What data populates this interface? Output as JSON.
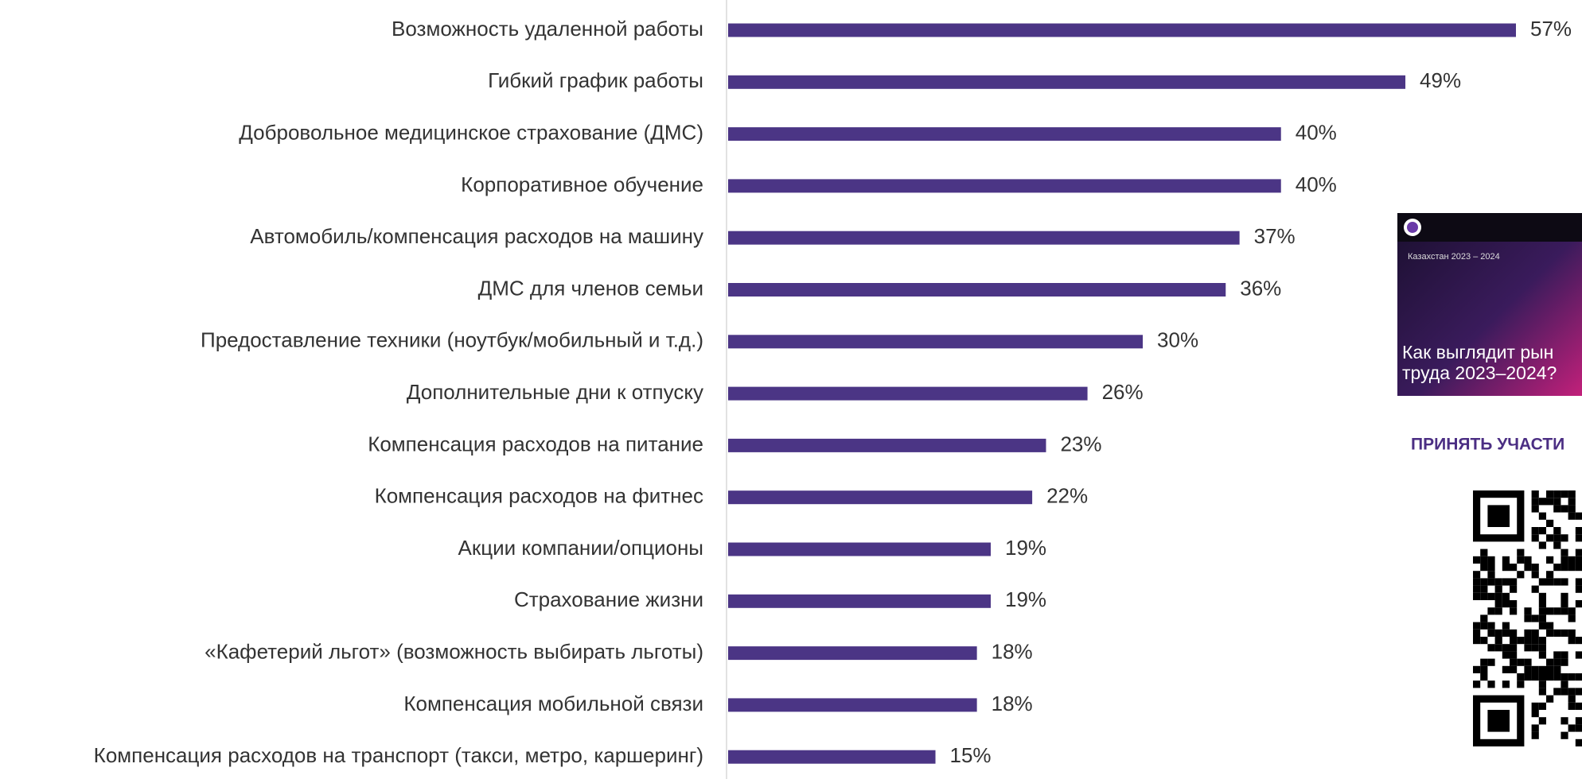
{
  "chart_data": {
    "type": "hbar",
    "categories": [
      "Возможность удаленной работы",
      "Гибкий график работы",
      "Добровольное медицинское страхование (ДМС)",
      "Корпоративное обучение",
      "Автомобиль/компенсация расходов на машину",
      "ДМС для членов семьи",
      "Предоставление техники (ноутбук/мобильный и т.д.)",
      "Дополнительные дни к отпуску",
      "Компенсация расходов на питание",
      "Компенсация расходов на фитнес",
      "Акции компании/опционы",
      "Страхование жизни",
      "«Кафетерий льгот» (возможность выбирать льготы)",
      "Компенсация мобильной связи",
      "Компенсация расходов на транспорт (такси, метро, каршеринг)"
    ],
    "values": [
      57,
      49,
      40,
      40,
      37,
      36,
      30,
      26,
      23,
      22,
      19,
      19,
      18,
      18,
      15
    ],
    "value_labels": [
      "57%",
      "49%",
      "40%",
      "40%",
      "37%",
      "36%",
      "30%",
      "26%",
      "23%",
      "22%",
      "19%",
      "19%",
      "18%",
      "18%",
      "15%"
    ],
    "color": "#4b3585"
  },
  "promo": {
    "region": "Казахстан 2023 – 2024",
    "headline": [
      "Как выглядит рын",
      "труда 2023–2024?"
    ],
    "cta": "ПРИНЯТЬ УЧАСТИ"
  }
}
